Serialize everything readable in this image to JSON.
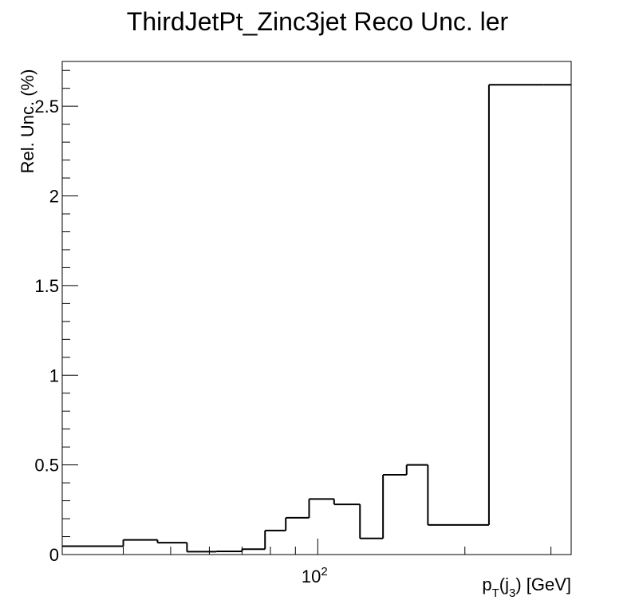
{
  "chart_data": {
    "type": "line",
    "style": "step-histogram",
    "title": "ThirdJetPt_Zinc3jet Reco Unc. ler",
    "xlabel": {
      "p": "p",
      "sub_T": "T",
      "open": "(j",
      "sub_3": "3",
      "close": ") [GeV]"
    },
    "ylabel": "Rel. Unc. (%)",
    "x_scale": "log",
    "xlim": [
      30,
      330
    ],
    "ylim": [
      0,
      2.75
    ],
    "x_tick_labels": [
      {
        "base": "10",
        "exp": "2",
        "value": 100
      }
    ],
    "y_ticks": [
      {
        "value": 0,
        "label": "0"
      },
      {
        "value": 0.5,
        "label": "0.5"
      },
      {
        "value": 1,
        "label": "1"
      },
      {
        "value": 1.5,
        "label": "1.5"
      },
      {
        "value": 2,
        "label": "2"
      },
      {
        "value": 2.5,
        "label": "2.5"
      }
    ],
    "bin_edges": [
      30,
      40,
      47,
      54,
      62,
      70,
      78,
      86,
      96,
      108,
      122,
      136,
      152,
      168,
      195,
      224,
      290,
      330
    ],
    "values": [
      0.047,
      0.082,
      0.066,
      0.016,
      0.018,
      0.03,
      0.134,
      0.205,
      0.31,
      0.28,
      0.09,
      0.445,
      0.5,
      0.165,
      0.165,
      2.62,
      2.62
    ],
    "line_color": "#000000",
    "grid": false,
    "legend": "none"
  }
}
